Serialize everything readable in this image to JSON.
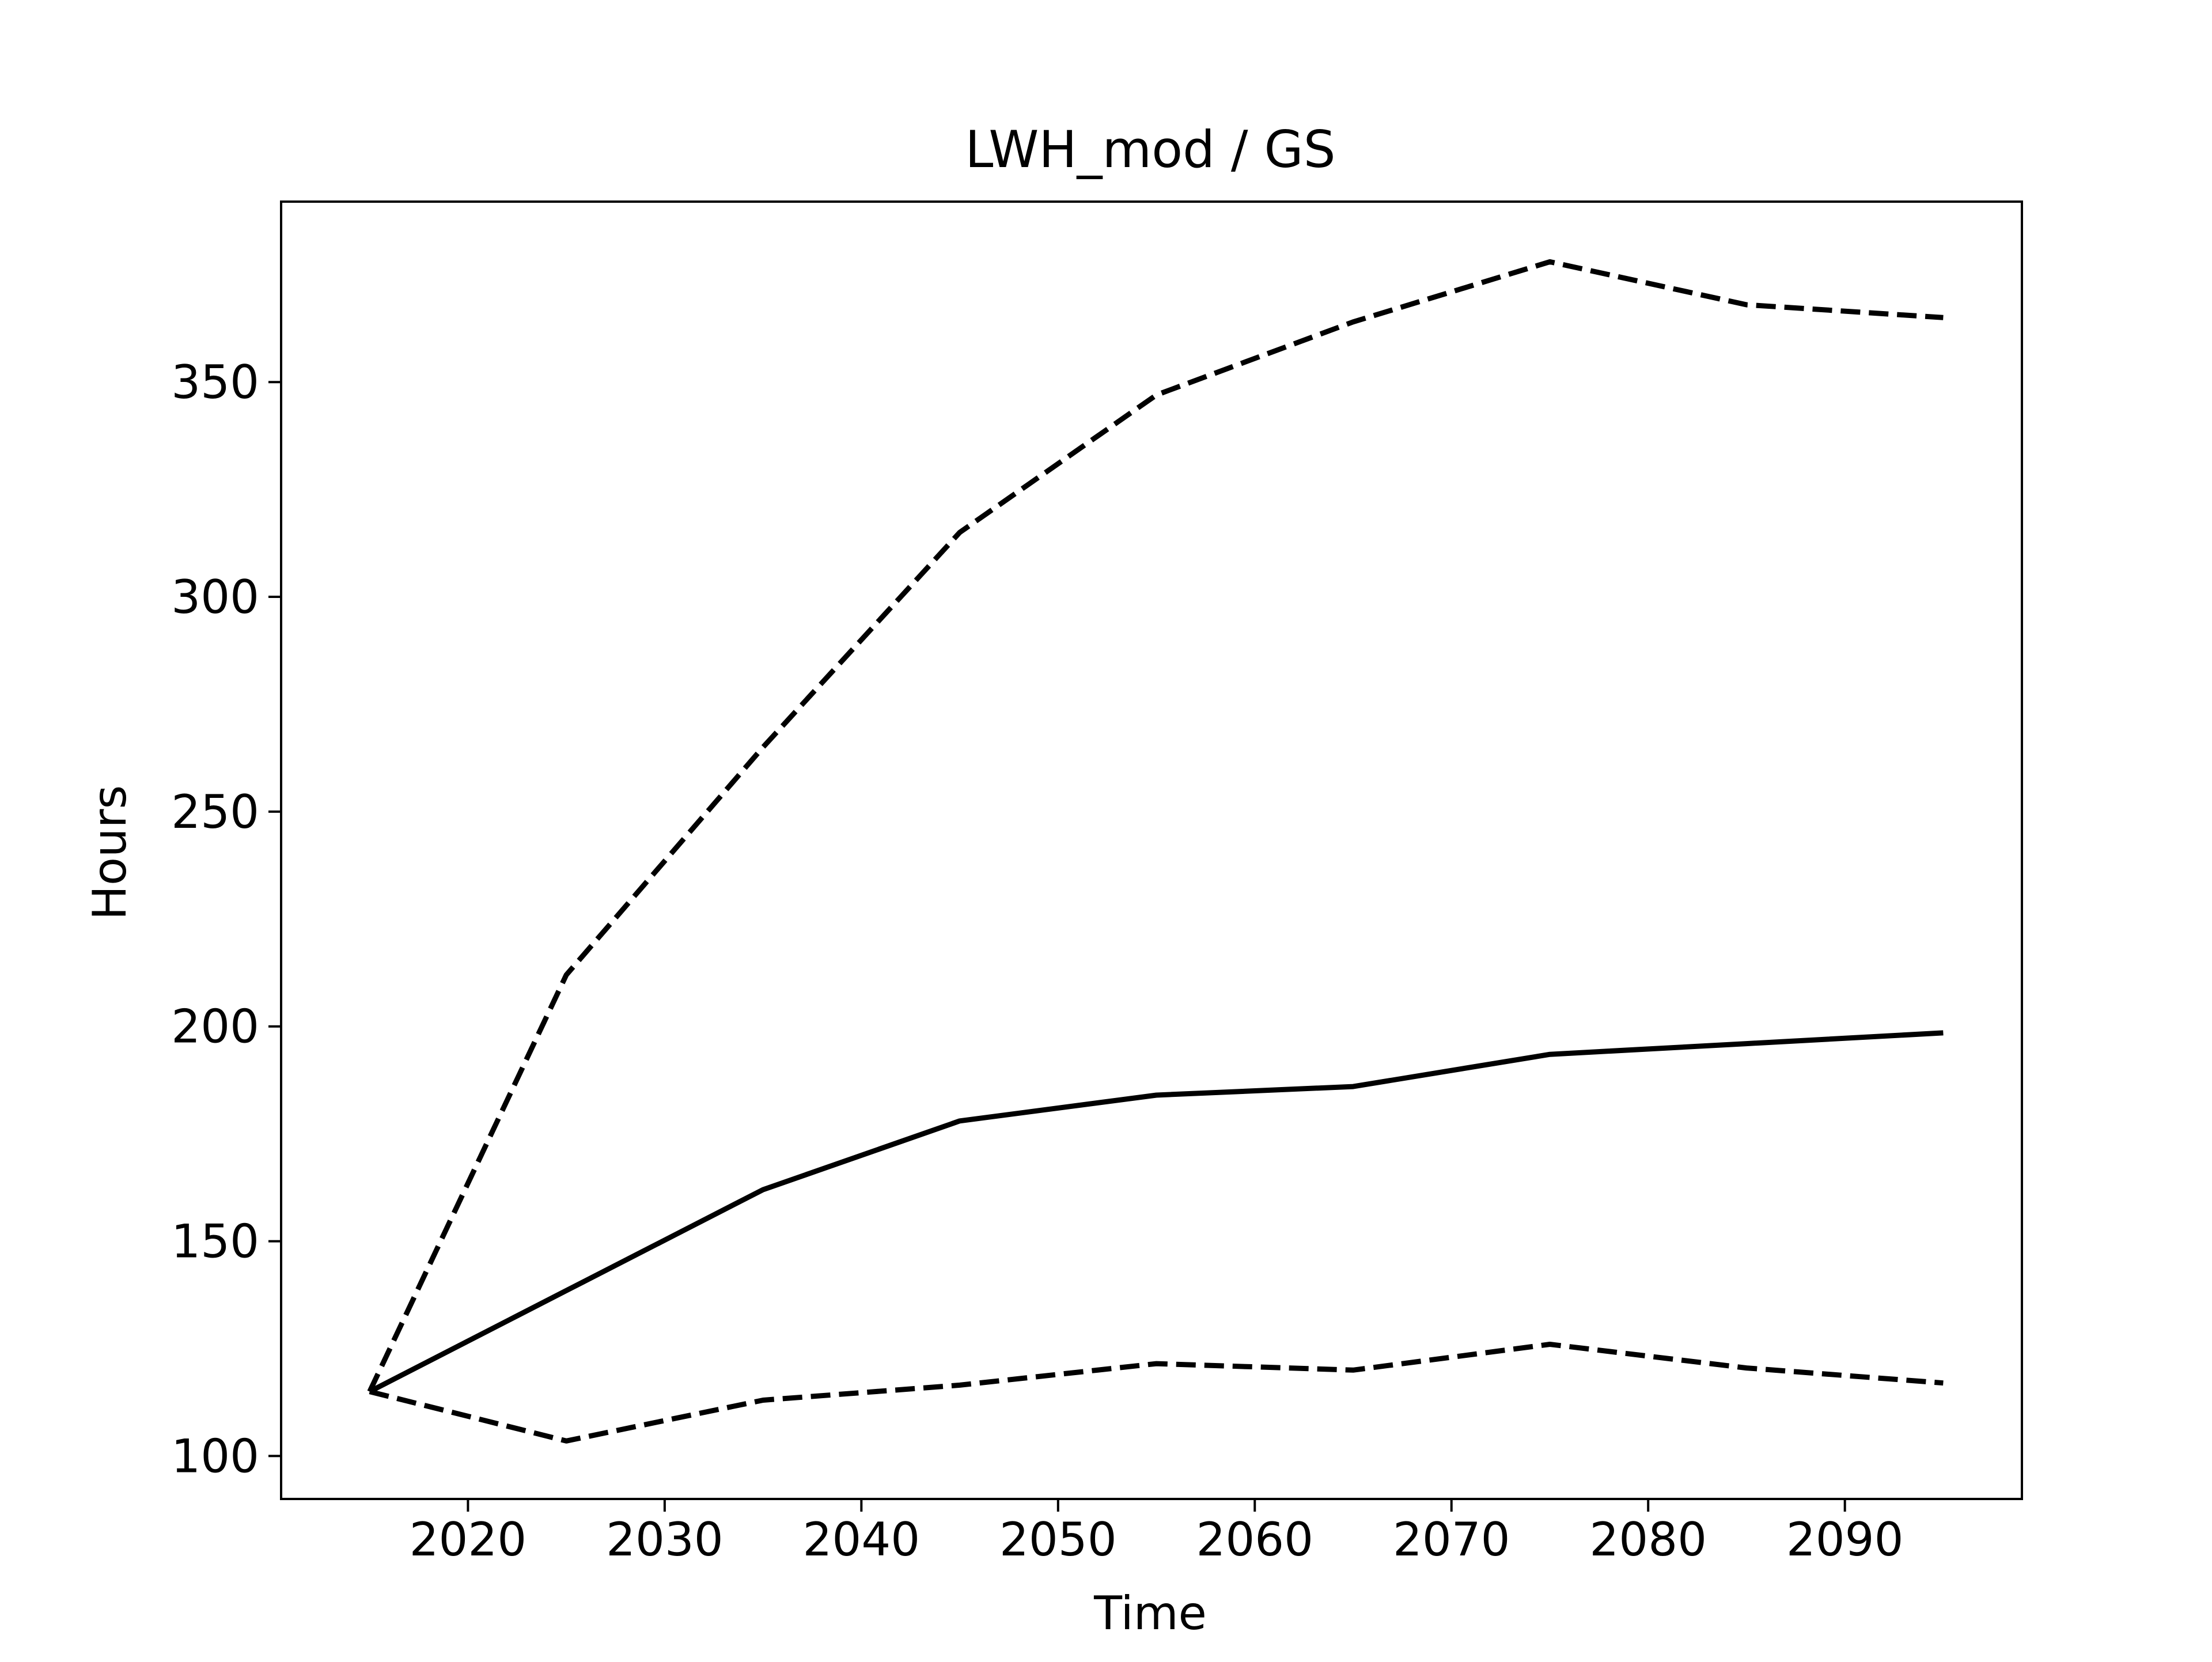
{
  "chart_data": {
    "type": "line",
    "title": "LWH_mod / GS",
    "xlabel": "Time",
    "ylabel": "Hours",
    "xlim": [
      2010.5,
      2099
    ],
    "ylim": [
      90,
      392
    ],
    "xticks": [
      2020,
      2030,
      2040,
      2050,
      2060,
      2070,
      2080,
      2090
    ],
    "yticks": [
      100,
      150,
      200,
      250,
      300,
      350
    ],
    "grid": false,
    "legend": "none",
    "x": [
      2015,
      2025,
      2035,
      2045,
      2055,
      2065,
      2075,
      2085,
      2095
    ],
    "series": [
      {
        "style": "dashed",
        "color": "#000000",
        "values": [
          115,
          212,
          265,
          315,
          347,
          364,
          378,
          368,
          365
        ]
      },
      {
        "style": "solid",
        "color": "#000000",
        "values": [
          115,
          138.5,
          162,
          178,
          184,
          186,
          193.5,
          196,
          198.5
        ]
      },
      {
        "style": "dashed",
        "color": "#000000",
        "values": [
          115,
          103.5,
          113,
          116.5,
          121.5,
          120,
          126,
          120.5,
          117
        ]
      }
    ]
  }
}
